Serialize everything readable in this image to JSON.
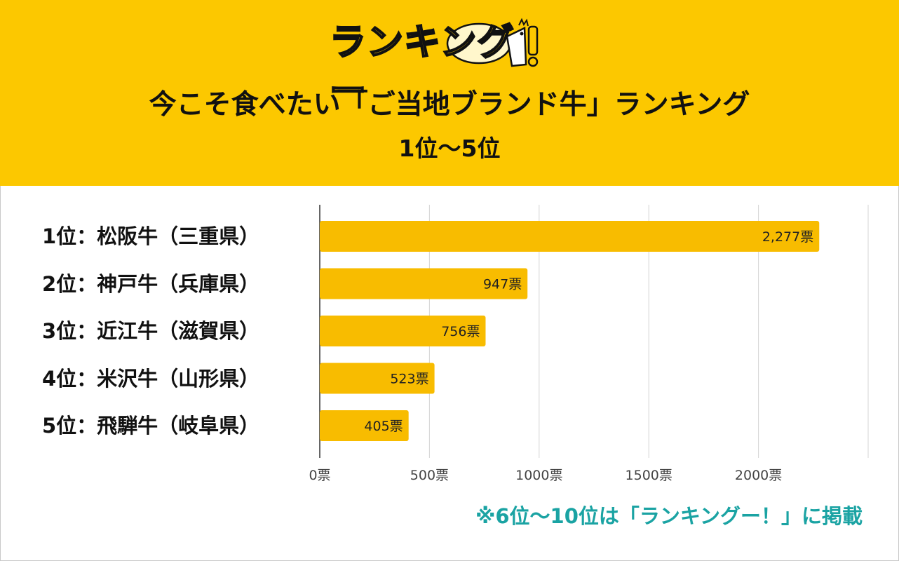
{
  "logo": {
    "text": "ランキングー"
  },
  "header": {
    "title": "今こそ食べたい「ご当地ブランド牛」ランキング",
    "subtitle": "1位～5位"
  },
  "colors": {
    "header_bg": "#fcc800",
    "bar": "#f8bc00",
    "note": "#1aa3a3"
  },
  "chart_data": {
    "type": "bar",
    "orientation": "horizontal",
    "categories": [
      "1位：松阪牛（三重県）",
      "2位：神戸牛（兵庫県）",
      "3位：近江牛（滋賀県）",
      "4位：米沢牛（山形県）",
      "5位：飛騨牛（岐阜県）"
    ],
    "values": [
      2277,
      947,
      756,
      523,
      405
    ],
    "value_labels": [
      "2,277票",
      "947票",
      "756票",
      "523票",
      "405票"
    ],
    "xlim": [
      0,
      2500
    ],
    "ticks": [
      0,
      500,
      1000,
      1500,
      2000,
      2500
    ],
    "tick_labels": [
      "0票",
      "500票",
      "1000票",
      "1500票",
      "2000票"
    ],
    "grid": true
  },
  "footer": {
    "note": "※6位～10位は「ランキングー！」に掲載"
  }
}
